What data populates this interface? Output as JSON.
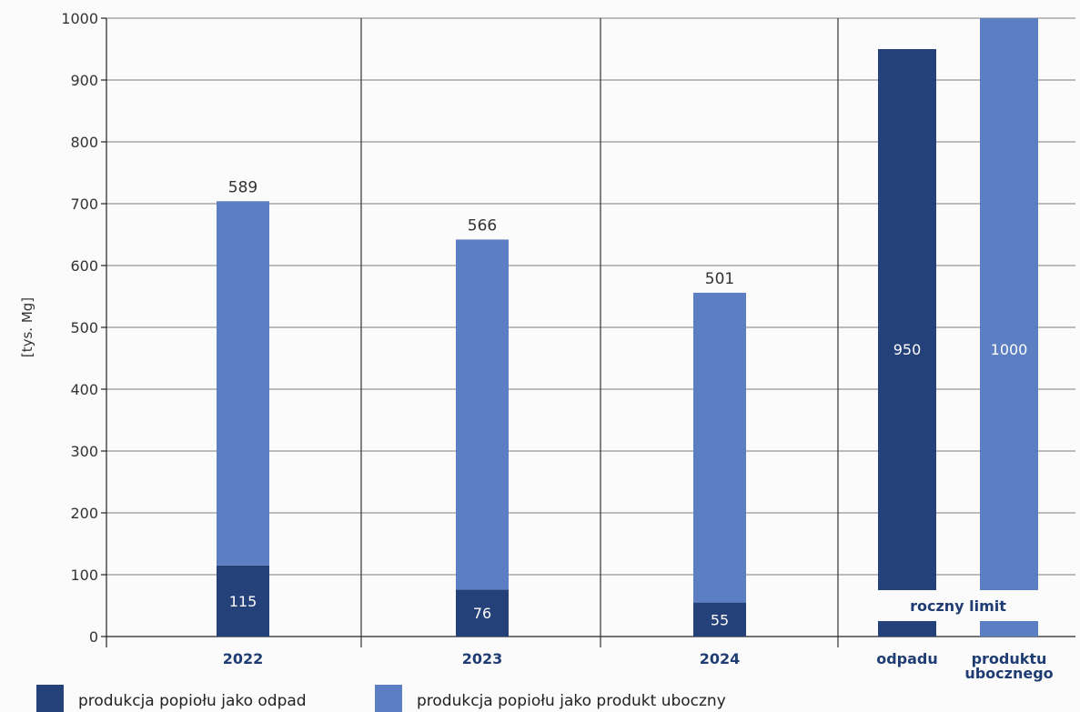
{
  "colors": {
    "waste": "#24417a",
    "byproduct": "#5b7fc2"
  },
  "chart_data": {
    "type": "bar",
    "stacked": true,
    "ylabel": "[tys. Mg]",
    "ylim": [
      0,
      1000
    ],
    "yticks": [
      0,
      100,
      200,
      300,
      400,
      500,
      600,
      700,
      800,
      900,
      1000
    ],
    "grid": true,
    "legend_position": "bottom-left",
    "categories": [
      "2022",
      "2023",
      "2024"
    ],
    "series": [
      {
        "name": "produkcja popiołu jako odpad",
        "values": [
          115,
          76,
          55
        ]
      },
      {
        "name": "produkcja popiołu jako produkt uboczny",
        "values": [
          589,
          566,
          501
        ]
      }
    ],
    "limit": {
      "title": "roczny limit",
      "items": [
        {
          "label": "odpadu",
          "value": 950,
          "value_label": "950"
        },
        {
          "label": "produktu ubocznego",
          "label_lines": [
            "produktu",
            "ubocznego"
          ],
          "value": 1000,
          "value_label": "1000"
        }
      ]
    }
  }
}
